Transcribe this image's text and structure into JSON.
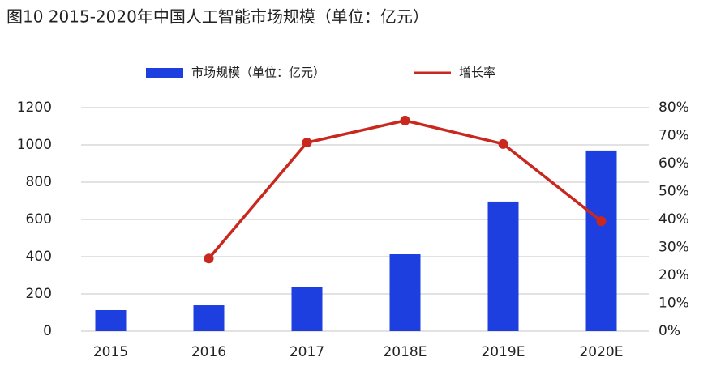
{
  "chart_data": {
    "type": "bar_line",
    "title": "图10   2015-2020年中国人工智能市场规模（单位：亿元）",
    "categories": [
      "2015",
      "2016",
      "2017",
      "2018E",
      "2019E",
      "2020E"
    ],
    "series": [
      {
        "name": "市场规模（单位：亿元）",
        "color": "#1d3fe0",
        "type": "bar",
        "values": [
          113,
          139,
          239,
          413,
          696,
          970
        ]
      },
      {
        "name": "增长率",
        "color": "#c9281e",
        "type": "line",
        "axis": "y2",
        "values": [
          null,
          26,
          67.5,
          75.4,
          67,
          39.4
        ]
      }
    ],
    "ylim": [
      0,
      1200
    ],
    "yticks": [
      0,
      200,
      400,
      600,
      800,
      1000,
      1200
    ],
    "y2lim": [
      0,
      80
    ],
    "y2ticks": [
      {
        "value": 0,
        "label": "0%"
      },
      {
        "value": 10,
        "label": "10%"
      },
      {
        "value": 20,
        "label": "20%"
      },
      {
        "value": 30,
        "label": "30%"
      },
      {
        "value": 40,
        "label": "40%"
      },
      {
        "value": 50,
        "label": "50%"
      },
      {
        "value": 60,
        "label": "60%"
      },
      {
        "value": 70,
        "label": "70%"
      },
      {
        "value": 80,
        "label": "80%"
      }
    ],
    "grid": true,
    "legend": "top"
  }
}
